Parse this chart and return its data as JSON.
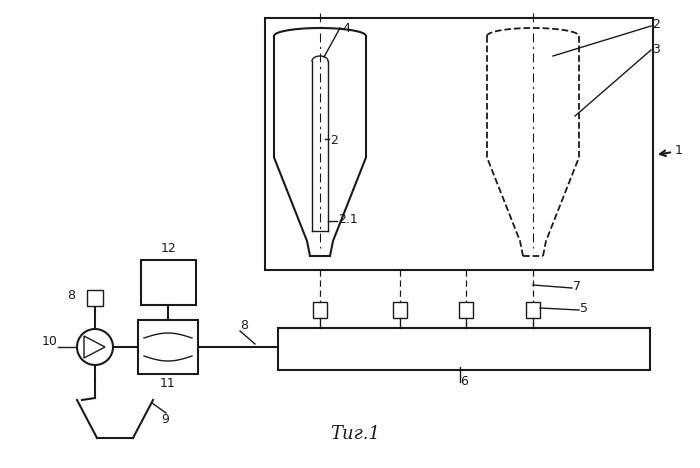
{
  "bg_color": "#ffffff",
  "line_color": "#1a1a1a",
  "fig_caption": "Τиг.1",
  "lw": 1.5,
  "lw_thin": 1.0
}
